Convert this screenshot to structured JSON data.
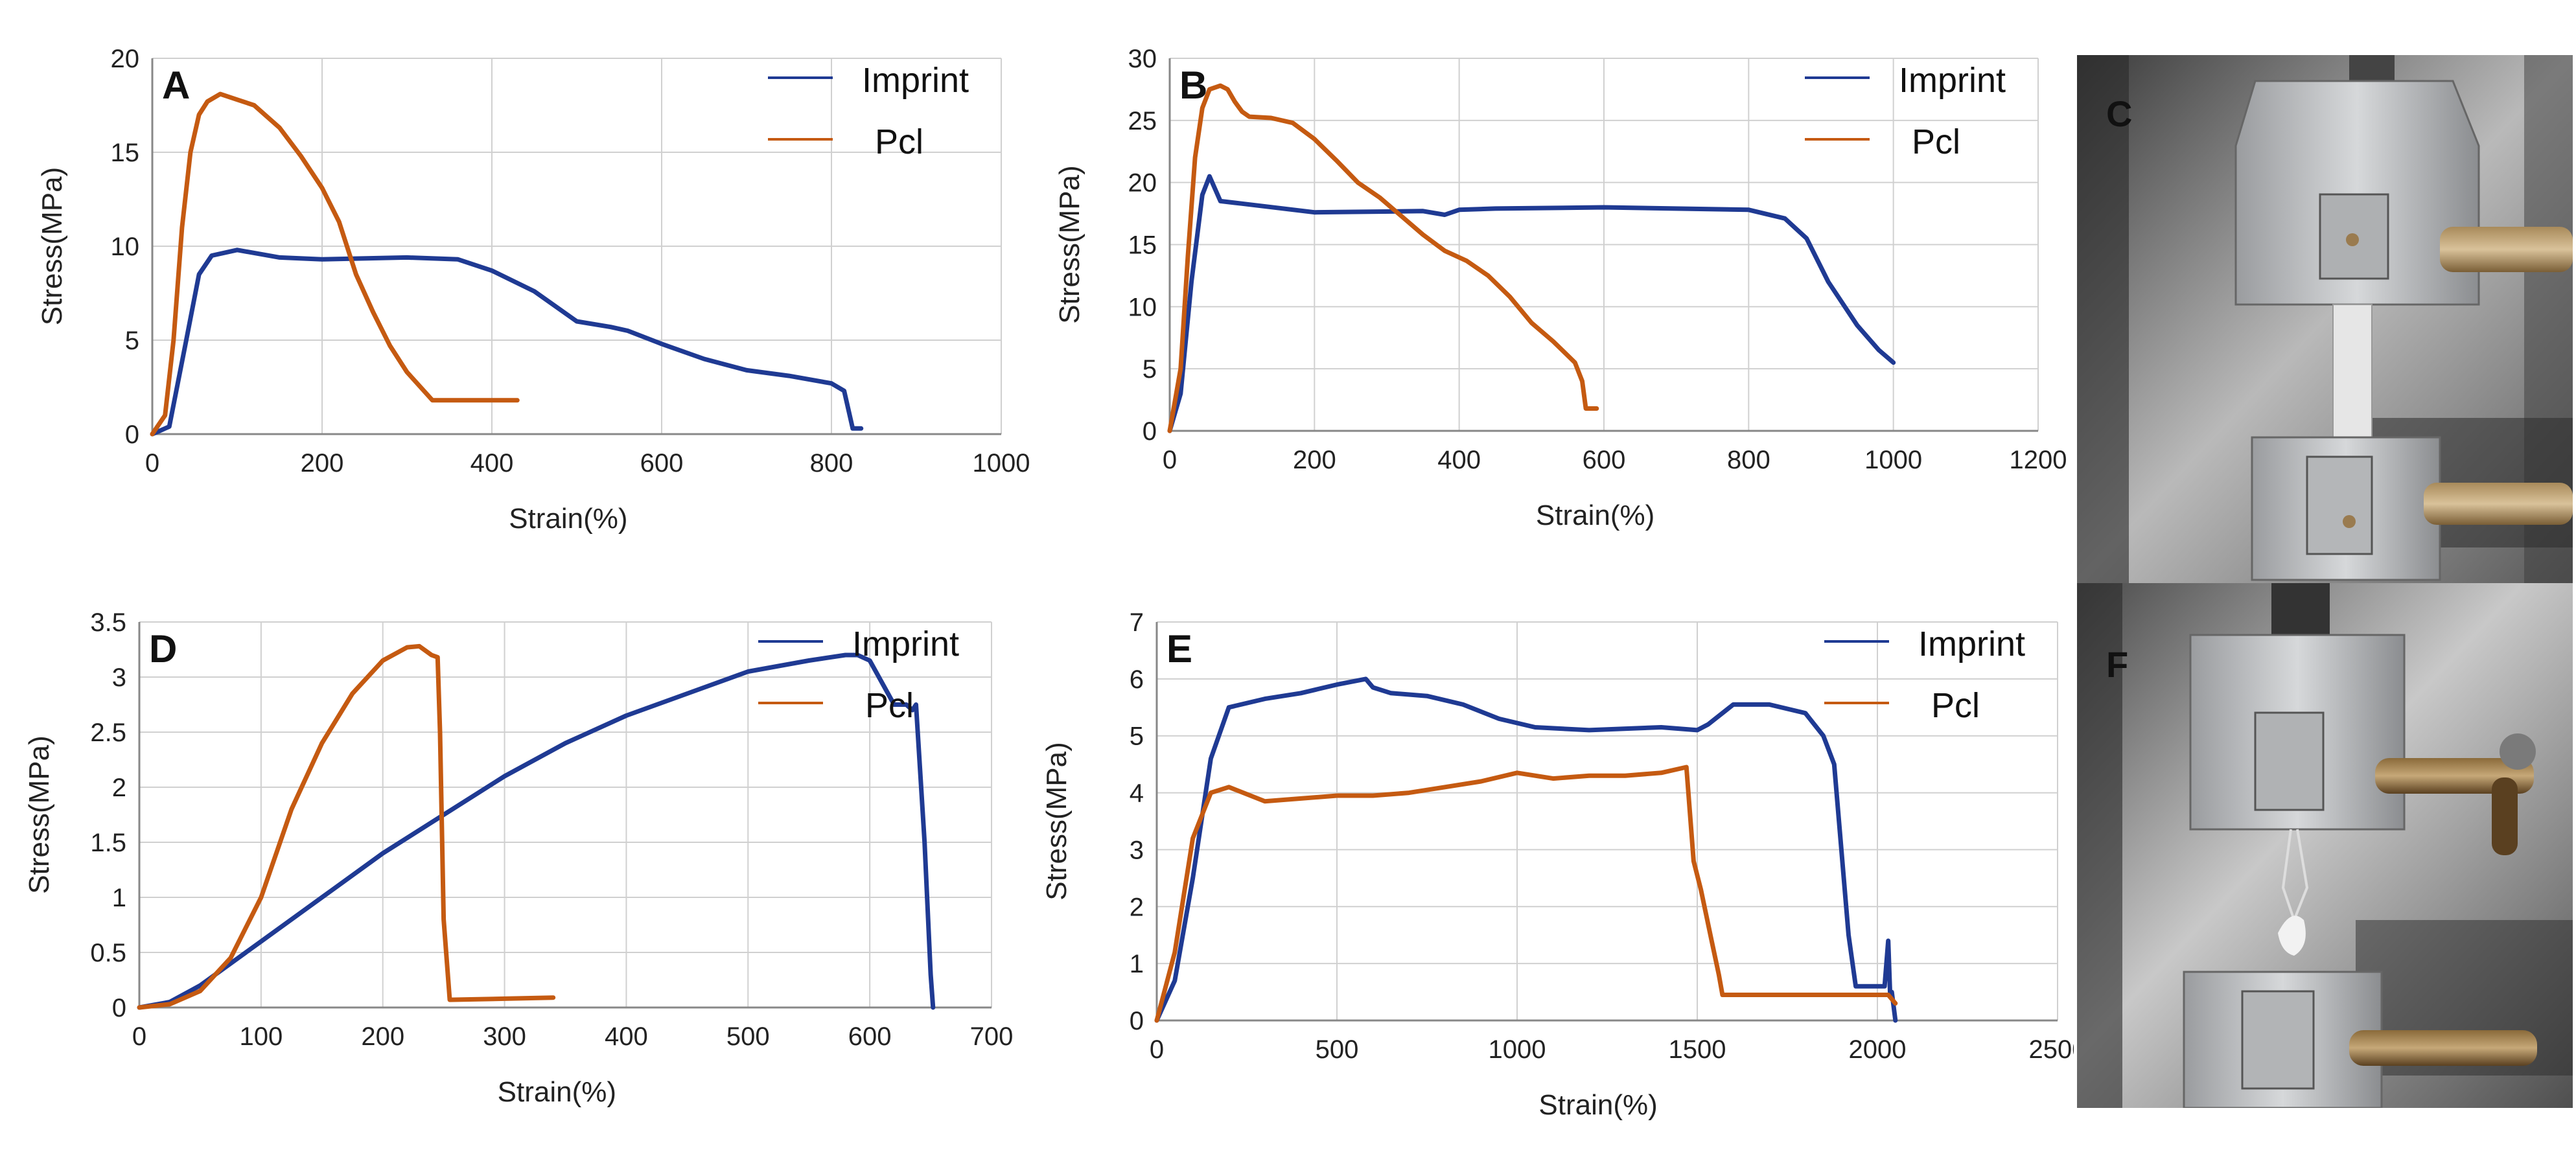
{
  "colors": {
    "imprint": "#1f3a93",
    "pcl": "#c55a11",
    "grid": "#d0d0d0",
    "axis": "#888888"
  },
  "panels": [
    {
      "label": "A",
      "xlabel": "Strain(%)",
      "ylabel": "Stress(MPa)",
      "xticks": [
        "0",
        "200",
        "400",
        "600",
        "800",
        "1000"
      ],
      "yticks": [
        "0",
        "5",
        "10",
        "15",
        "20"
      ],
      "legend": [
        "Imprint",
        "Pcl"
      ]
    },
    {
      "label": "B",
      "xlabel": "Strain(%)",
      "ylabel": "Stress(MPa)",
      "xticks": [
        "0",
        "200",
        "400",
        "600",
        "800",
        "1000",
        "1200"
      ],
      "yticks": [
        "0",
        "5",
        "10",
        "15",
        "20",
        "25",
        "30"
      ],
      "legend": [
        "Imprint",
        "Pcl"
      ]
    },
    {
      "label": "D",
      "xlabel": "Strain(%)",
      "ylabel": "Stress(MPa)",
      "xticks": [
        "0",
        "100",
        "200",
        "300",
        "400",
        "500",
        "600",
        "700"
      ],
      "yticks": [
        "0",
        "0.5",
        "1",
        "1.5",
        "2",
        "2.5",
        "3",
        "3.5"
      ],
      "legend": [
        "Imprint",
        "Pcl"
      ]
    },
    {
      "label": "E",
      "xlabel": "Strain(%)",
      "ylabel": "Stress(MPa)",
      "xticks": [
        "0",
        "500",
        "1000",
        "1500",
        "2000",
        "2500"
      ],
      "yticks": [
        "0",
        "1",
        "2",
        "3",
        "4",
        "5",
        "6",
        "7"
      ],
      "legend": [
        "Imprint",
        "Pcl"
      ]
    }
  ],
  "photos": [
    {
      "label": "C"
    },
    {
      "label": "F"
    }
  ],
  "chart_data": [
    {
      "type": "line",
      "xlim": [
        0,
        1000
      ],
      "ylim": [
        0,
        20
      ],
      "grid": true,
      "legend_position": "top-right",
      "series": [
        {
          "name": "Imprint",
          "x": [
            0,
            20,
            40,
            55,
            70,
            100,
            150,
            200,
            300,
            360,
            400,
            450,
            500,
            540,
            560,
            600,
            650,
            700,
            750,
            800,
            815,
            825,
            835
          ],
          "y": [
            0,
            0.4,
            5,
            8.5,
            9.5,
            9.8,
            9.4,
            9.3,
            9.4,
            9.3,
            8.7,
            7.6,
            6.0,
            5.7,
            5.5,
            4.8,
            4.0,
            3.4,
            3.1,
            2.7,
            2.3,
            0.3,
            0.3
          ]
        },
        {
          "name": "Pcl",
          "x": [
            0,
            15,
            25,
            35,
            45,
            55,
            65,
            80,
            100,
            120,
            150,
            175,
            200,
            220,
            240,
            260,
            280,
            300,
            330,
            400,
            430
          ],
          "y": [
            0,
            1,
            5,
            11,
            15,
            17,
            17.7,
            18.1,
            17.8,
            17.5,
            16.3,
            14.8,
            13.1,
            11.3,
            8.5,
            6.5,
            4.7,
            3.3,
            1.8,
            1.8,
            1.8
          ]
        }
      ]
    },
    {
      "type": "line",
      "xlim": [
        0,
        1200
      ],
      "ylim": [
        0,
        30
      ],
      "grid": true,
      "legend_position": "top-right",
      "series": [
        {
          "name": "Imprint",
          "x": [
            0,
            15,
            30,
            45,
            55,
            70,
            100,
            200,
            350,
            380,
            400,
            450,
            600,
            800,
            850,
            880,
            910,
            950,
            980,
            1000
          ],
          "y": [
            0,
            3,
            12,
            19,
            20.5,
            18.5,
            18.3,
            17.6,
            17.7,
            17.4,
            17.8,
            17.9,
            18,
            17.8,
            17.1,
            15.5,
            12,
            8.5,
            6.5,
            5.5
          ]
        },
        {
          "name": "Pcl",
          "x": [
            0,
            15,
            25,
            35,
            45,
            55,
            70,
            80,
            90,
            100,
            110,
            140,
            170,
            200,
            230,
            260,
            290,
            320,
            350,
            380,
            410,
            440,
            470,
            500,
            530,
            560,
            570,
            575,
            590
          ],
          "y": [
            0,
            5,
            14,
            22,
            26,
            27.5,
            27.8,
            27.5,
            26.5,
            25.7,
            25.3,
            25.2,
            24.8,
            23.5,
            21.8,
            20,
            18.8,
            17.3,
            15.8,
            14.5,
            13.7,
            12.5,
            10.8,
            8.7,
            7.2,
            5.5,
            4,
            1.8,
            1.8
          ]
        }
      ]
    },
    {
      "type": "line",
      "xlim": [
        0,
        700
      ],
      "ylim": [
        0,
        3.5
      ],
      "grid": true,
      "legend_position": "top-right",
      "series": [
        {
          "name": "Imprint",
          "x": [
            0,
            25,
            50,
            100,
            150,
            200,
            250,
            300,
            350,
            400,
            450,
            500,
            550,
            580,
            590,
            600,
            610,
            620,
            630,
            635,
            638,
            645,
            650,
            652
          ],
          "y": [
            0,
            0.05,
            0.2,
            0.6,
            1.0,
            1.4,
            1.75,
            2.1,
            2.4,
            2.65,
            2.85,
            3.05,
            3.15,
            3.2,
            3.2,
            3.15,
            2.95,
            2.75,
            2.75,
            2.7,
            2.75,
            1.5,
            0.3,
            0
          ]
        },
        {
          "name": "Pcl",
          "x": [
            0,
            25,
            50,
            75,
            100,
            125,
            150,
            175,
            200,
            220,
            230,
            240,
            245,
            247,
            250,
            255,
            300,
            340
          ],
          "y": [
            0,
            0.03,
            0.15,
            0.45,
            1.0,
            1.8,
            2.4,
            2.85,
            3.15,
            3.27,
            3.28,
            3.2,
            3.18,
            2.5,
            0.8,
            0.07,
            0.08,
            0.09
          ]
        }
      ]
    },
    {
      "type": "line",
      "xlim": [
        0,
        2500
      ],
      "ylim": [
        0,
        7
      ],
      "grid": true,
      "legend_position": "top-right",
      "series": [
        {
          "name": "Imprint",
          "x": [
            0,
            50,
            100,
            150,
            200,
            300,
            400,
            500,
            580,
            600,
            650,
            750,
            850,
            950,
            1050,
            1200,
            1400,
            1500,
            1530,
            1600,
            1700,
            1800,
            1850,
            1880,
            1900,
            1920,
            1940,
            1960,
            2020,
            2030,
            2035,
            2040,
            2050
          ],
          "y": [
            0,
            0.7,
            2.5,
            4.6,
            5.5,
            5.65,
            5.75,
            5.9,
            6.0,
            5.85,
            5.75,
            5.7,
            5.55,
            5.3,
            5.15,
            5.1,
            5.15,
            5.1,
            5.2,
            5.55,
            5.55,
            5.4,
            5.0,
            4.5,
            3.0,
            1.5,
            0.6,
            0.6,
            0.6,
            1.4,
            0.5,
            0.5,
            0
          ]
        },
        {
          "name": "Pcl",
          "x": [
            0,
            50,
            100,
            150,
            200,
            300,
            400,
            500,
            600,
            700,
            800,
            900,
            1000,
            1100,
            1200,
            1300,
            1400,
            1470,
            1490,
            1510,
            1540,
            1560,
            1570,
            1600,
            1800,
            2000,
            2030,
            2050
          ],
          "y": [
            0,
            1.2,
            3.2,
            4.0,
            4.1,
            3.85,
            3.9,
            3.95,
            3.95,
            4.0,
            4.1,
            4.2,
            4.35,
            4.25,
            4.3,
            4.3,
            4.35,
            4.45,
            2.8,
            2.3,
            1.4,
            0.8,
            0.45,
            0.45,
            0.45,
            0.45,
            0.45,
            0.3
          ]
        }
      ]
    }
  ]
}
